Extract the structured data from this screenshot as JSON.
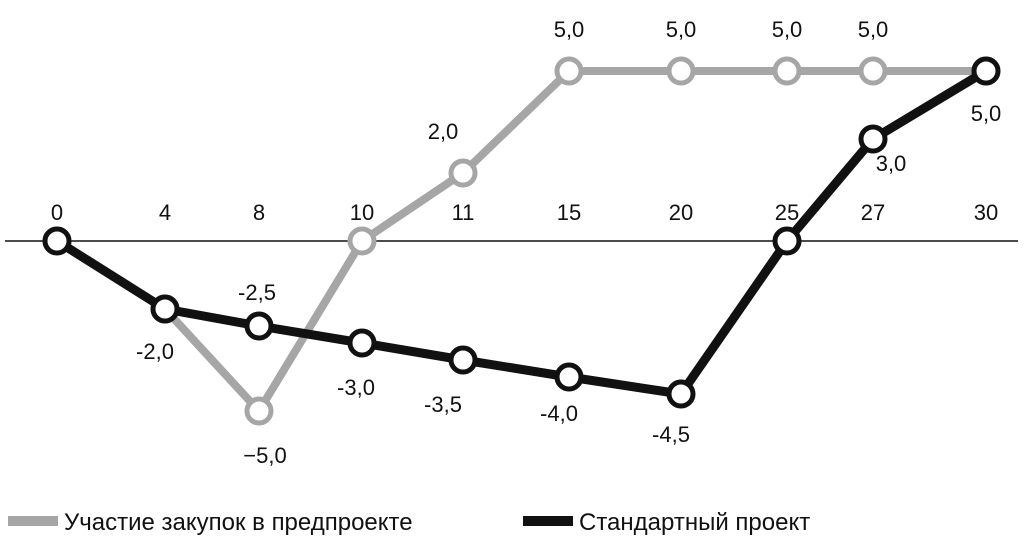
{
  "chart_data": {
    "type": "line",
    "x": [
      0,
      4,
      8,
      10,
      11,
      15,
      20,
      25,
      27,
      30
    ],
    "x_tick_labels": [
      "0",
      "4",
      "8",
      "10",
      "11",
      "15",
      "20",
      "25",
      "27",
      "30"
    ],
    "series": [
      {
        "name": "Участие закупок в предпроекте",
        "color": "#a6a6a6",
        "values": [
          0,
          -2.0,
          -5.0,
          0,
          2.0,
          5.0,
          5.0,
          5.0,
          5.0,
          5.0
        ],
        "labels": [
          "",
          "",
          "−5,0",
          "",
          "2,0",
          "5,0",
          "5,0",
          "5,0",
          "5,0",
          ""
        ]
      },
      {
        "name": "Стандартный проект",
        "color": "#111111",
        "values": [
          0,
          -2.0,
          -2.5,
          -3.0,
          -3.5,
          -4.0,
          -4.5,
          0,
          3.0,
          5.0
        ],
        "labels": [
          "",
          "-2,0",
          "-2,5",
          "-3,0",
          "-3,5",
          "-4,0",
          "-4,5",
          "",
          "3,0",
          "5,0"
        ]
      }
    ],
    "ylim": [
      -5.0,
      5.0
    ],
    "grid": false,
    "legend_position": "bottom-left"
  }
}
